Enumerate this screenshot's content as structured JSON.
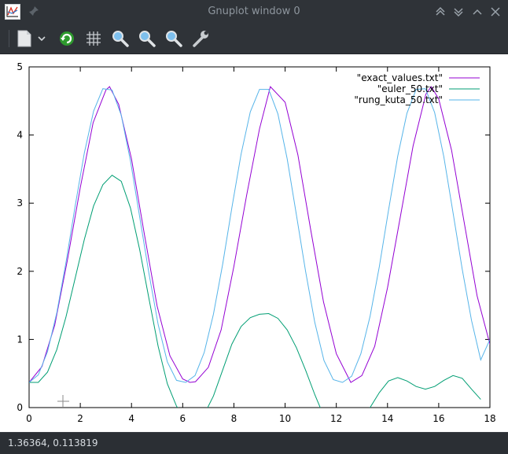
{
  "window": {
    "title": "Gnuplot window 0",
    "app_icon": "gnuplot-icon",
    "pin_icon": "pin-icon",
    "buttons": [
      "keep-above-icon",
      "keep-below-icon",
      "maximize-icon",
      "close-icon"
    ]
  },
  "toolbar": {
    "items": [
      "copy-export-icon",
      "dropdown-arrow-icon",
      "replot-icon",
      "grid-icon",
      "zoom-icon",
      "zoom-previous-icon",
      "zoom-next-icon",
      "settings-wrench-icon"
    ]
  },
  "status": {
    "coordinates": "1.36364,  0.113819"
  },
  "colors": {
    "exact": "#9400d3",
    "euler": "#009e73",
    "rk": "#56b4e9",
    "window_bg": "#2f3338"
  },
  "chart_data": {
    "type": "line",
    "xlim": [
      0,
      18
    ],
    "ylim": [
      0,
      5
    ],
    "x_ticks": [
      "0",
      "2",
      "4",
      "6",
      "8",
      "10",
      "12",
      "14",
      "16",
      "18"
    ],
    "y_ticks": [
      "0",
      "1",
      "2",
      "3",
      "4",
      "5"
    ],
    "grid": false,
    "legend_position": "top-right",
    "series": [
      {
        "name": "\"exact_values.txt\"",
        "x": [
          0,
          0.5,
          1,
          1.5,
          2,
          2.5,
          3,
          3.1416,
          3.5,
          4,
          4.5,
          5,
          5.5,
          6,
          6.2832,
          6.5,
          7,
          7.5,
          8,
          8.5,
          9,
          9.4248,
          10,
          10.5,
          11,
          11.5,
          12,
          12.5664,
          13,
          13.5,
          14,
          14.5,
          15,
          15.5,
          15.708,
          16,
          16.5,
          17,
          17.5,
          18
        ],
        "y": [
          0.37,
          0.6,
          1.21,
          2.17,
          3.23,
          4.18,
          4.66,
          4.71,
          4.45,
          3.65,
          2.55,
          1.49,
          0.76,
          0.42,
          0.37,
          0.38,
          0.59,
          1.14,
          2.07,
          3.12,
          4.09,
          4.71,
          4.48,
          3.71,
          2.61,
          1.55,
          0.79,
          0.37,
          0.47,
          0.9,
          1.76,
          2.8,
          3.84,
          4.6,
          4.71,
          4.53,
          3.78,
          2.71,
          1.64,
          0.93
        ]
      },
      {
        "name": "\"euler_50.txt\"",
        "x": [
          0,
          0.36,
          0.72,
          1.08,
          1.44,
          1.8,
          2.16,
          2.52,
          2.88,
          3.24,
          3.6,
          3.96,
          4.32,
          4.68,
          5.04,
          5.4,
          5.76,
          6.12,
          6.48,
          6.84,
          7.2,
          7.56,
          7.92,
          8.28,
          8.64,
          9.0,
          9.36,
          9.72,
          10.08,
          10.44,
          10.8,
          11.16,
          11.52,
          11.88,
          12.24,
          12.6,
          12.96,
          13.32,
          13.68,
          14.04,
          14.4,
          14.76,
          15.12,
          15.48,
          15.84,
          16.2,
          16.56,
          16.92,
          17.28,
          17.64
        ],
        "y": [
          0.37,
          0.37,
          0.52,
          0.85,
          1.33,
          1.9,
          2.47,
          2.96,
          3.27,
          3.41,
          3.32,
          2.93,
          2.32,
          1.6,
          0.9,
          0.35,
          0.02,
          -0.15,
          -0.2,
          -0.1,
          0.17,
          0.55,
          0.93,
          1.19,
          1.32,
          1.37,
          1.38,
          1.31,
          1.14,
          0.88,
          0.55,
          0.19,
          -0.13,
          -0.38,
          -0.51,
          -0.52,
          -0.36,
          0.0,
          0.22,
          0.39,
          0.44,
          0.39,
          0.31,
          0.27,
          0.31,
          0.4,
          0.47,
          0.43,
          0.27,
          0.12
        ]
      },
      {
        "name": "\"rung_kuta_50.txt\"",
        "x": [
          0,
          0.36,
          0.72,
          1.08,
          1.44,
          1.8,
          2.16,
          2.52,
          2.88,
          3.24,
          3.6,
          3.96,
          4.32,
          4.68,
          5.04,
          5.4,
          5.76,
          6.12,
          6.48,
          6.84,
          7.2,
          7.56,
          7.92,
          8.28,
          8.64,
          9.0,
          9.36,
          9.72,
          10.08,
          10.44,
          10.8,
          11.16,
          11.52,
          11.88,
          12.24,
          12.6,
          12.96,
          13.32,
          13.68,
          14.04,
          14.4,
          14.76,
          15.12,
          15.48,
          15.84,
          16.2,
          16.56,
          16.92,
          17.28,
          17.64,
          18
        ],
        "y": [
          0.37,
          0.48,
          0.82,
          1.39,
          2.13,
          2.96,
          3.74,
          4.35,
          4.68,
          4.66,
          4.29,
          3.62,
          2.8,
          1.97,
          1.22,
          0.67,
          0.4,
          0.37,
          0.47,
          0.81,
          1.37,
          2.1,
          2.93,
          3.72,
          4.34,
          4.67,
          4.67,
          4.31,
          3.65,
          2.83,
          2.0,
          1.25,
          0.69,
          0.41,
          0.37,
          0.46,
          0.79,
          1.34,
          2.07,
          2.9,
          3.69,
          4.32,
          4.67,
          4.68,
          4.33,
          3.68,
          2.86,
          2.03,
          1.28,
          0.7,
          1.0
        ]
      }
    ]
  }
}
